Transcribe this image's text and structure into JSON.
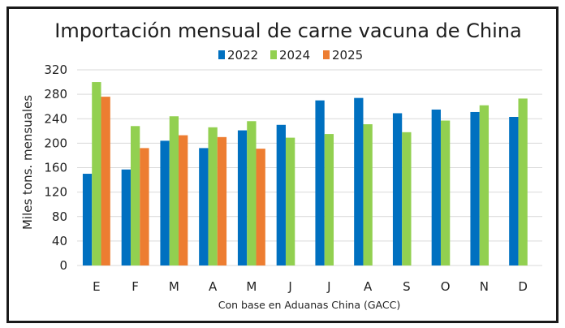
{
  "chart_data": {
    "type": "bar",
    "title": "Importación mensual de carne vacuna de China",
    "xlabel": "Con base en Aduanas China (GACC)",
    "ylabel": "Miles tons. mensuales",
    "ylim": [
      0,
      320
    ],
    "yticks": [
      0,
      40,
      80,
      120,
      160,
      200,
      240,
      280,
      320
    ],
    "grid": true,
    "legend_position": "top-center",
    "categories": [
      "E",
      "F",
      "M",
      "A",
      "M",
      "J",
      "J",
      "A",
      "S",
      "O",
      "N",
      "D"
    ],
    "series": [
      {
        "name": "2022",
        "color": "#0070C0",
        "values": [
          150,
          157,
          204,
          192,
          221,
          230,
          270,
          274,
          249,
          255,
          251,
          243
        ]
      },
      {
        "name": "2024",
        "color": "#92D050",
        "values": [
          300,
          228,
          244,
          226,
          236,
          209,
          215,
          231,
          218,
          237,
          262,
          273
        ]
      },
      {
        "name": "2025",
        "color": "#ED7D31",
        "values": [
          276,
          192,
          213,
          210,
          191,
          null,
          null,
          null,
          null,
          null,
          null,
          null
        ]
      }
    ]
  }
}
